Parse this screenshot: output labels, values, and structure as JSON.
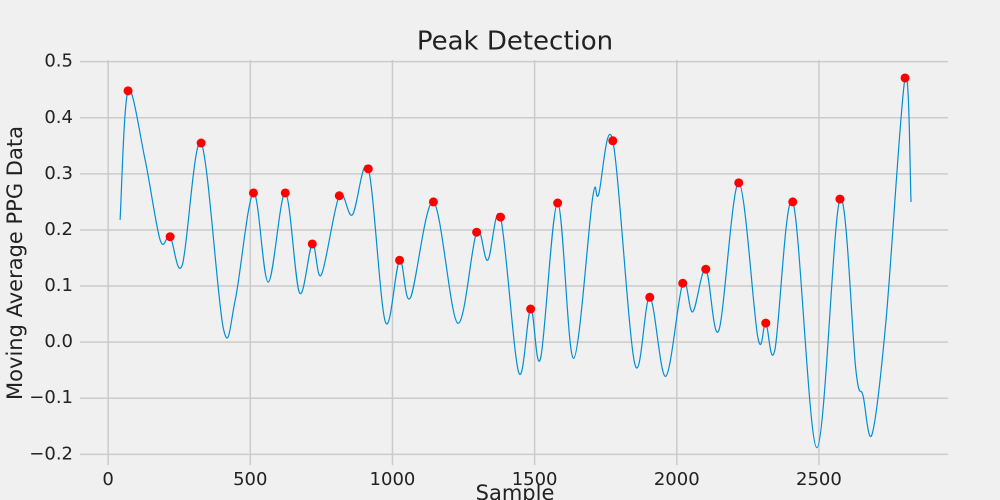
{
  "chart_data": {
    "type": "line",
    "title": "Peak Detection",
    "x_label": "Sample",
    "y_label": "Moving Average PPG Data",
    "xlim": [
      -99,
      2954
    ],
    "ylim": [
      -0.219,
      0.503
    ],
    "xticks": [
      0,
      500,
      1000,
      1500,
      2000,
      2500
    ],
    "yticks": [
      {
        "value": -0.2,
        "label": "−0.2"
      },
      {
        "value": -0.1,
        "label": "−0.1"
      },
      {
        "value": 0,
        "label": "0.0"
      },
      0.1,
      0.2,
      0.3,
      0.4,
      0.5
    ],
    "grid": true,
    "series": [
      {
        "type": "line",
        "color": "#008fd5",
        "x": [
          42,
          70,
          130,
          183,
          218,
          261,
          327,
          405,
          447,
          511,
          563,
          623,
          673,
          718,
          750,
          813,
          859,
          915,
          975,
          1025,
          1063,
          1144,
          1229,
          1296,
          1335,
          1380,
          1444,
          1486,
          1521,
          1581,
          1637,
          1704,
          1725,
          1775,
          1852,
          1905,
          1961,
          2021,
          2056,
          2102,
          2148,
          2218,
          2285,
          2313,
          2345,
          2408,
          2493,
          2574,
          2630,
          2655,
          2687,
          2736,
          2803,
          2824
        ],
        "values": [
          0.218,
          0.448,
          0.325,
          0.182,
          0.188,
          0.138,
          0.355,
          0.025,
          0.075,
          0.266,
          0.107,
          0.266,
          0.088,
          0.175,
          0.12,
          0.261,
          0.227,
          0.309,
          0.036,
          0.146,
          0.079,
          0.25,
          0.034,
          0.196,
          0.146,
          0.223,
          -0.054,
          0.059,
          -0.029,
          0.248,
          -0.029,
          0.257,
          0.263,
          0.359,
          -0.038,
          0.08,
          -0.061,
          0.105,
          0.054,
          0.13,
          0.021,
          0.284,
          0.009,
          0.034,
          -0.014,
          0.25,
          -0.188,
          0.255,
          -0.05,
          -0.095,
          -0.164,
          0.039,
          0.471,
          0.25
        ]
      },
      {
        "type": "scatter",
        "color": "#ff0000",
        "x": [
          70,
          218,
          327,
          511,
          623,
          718,
          813,
          915,
          1025,
          1144,
          1296,
          1380,
          1486,
          1581,
          1775,
          1905,
          2021,
          2102,
          2218,
          2313,
          2408,
          2574,
          2803
        ],
        "values": [
          0.448,
          0.188,
          0.355,
          0.266,
          0.266,
          0.175,
          0.261,
          0.309,
          0.146,
          0.25,
          0.196,
          0.223,
          0.059,
          0.248,
          0.359,
          0.08,
          0.105,
          0.13,
          0.284,
          0.034,
          0.25,
          0.255,
          0.471
        ]
      }
    ]
  }
}
